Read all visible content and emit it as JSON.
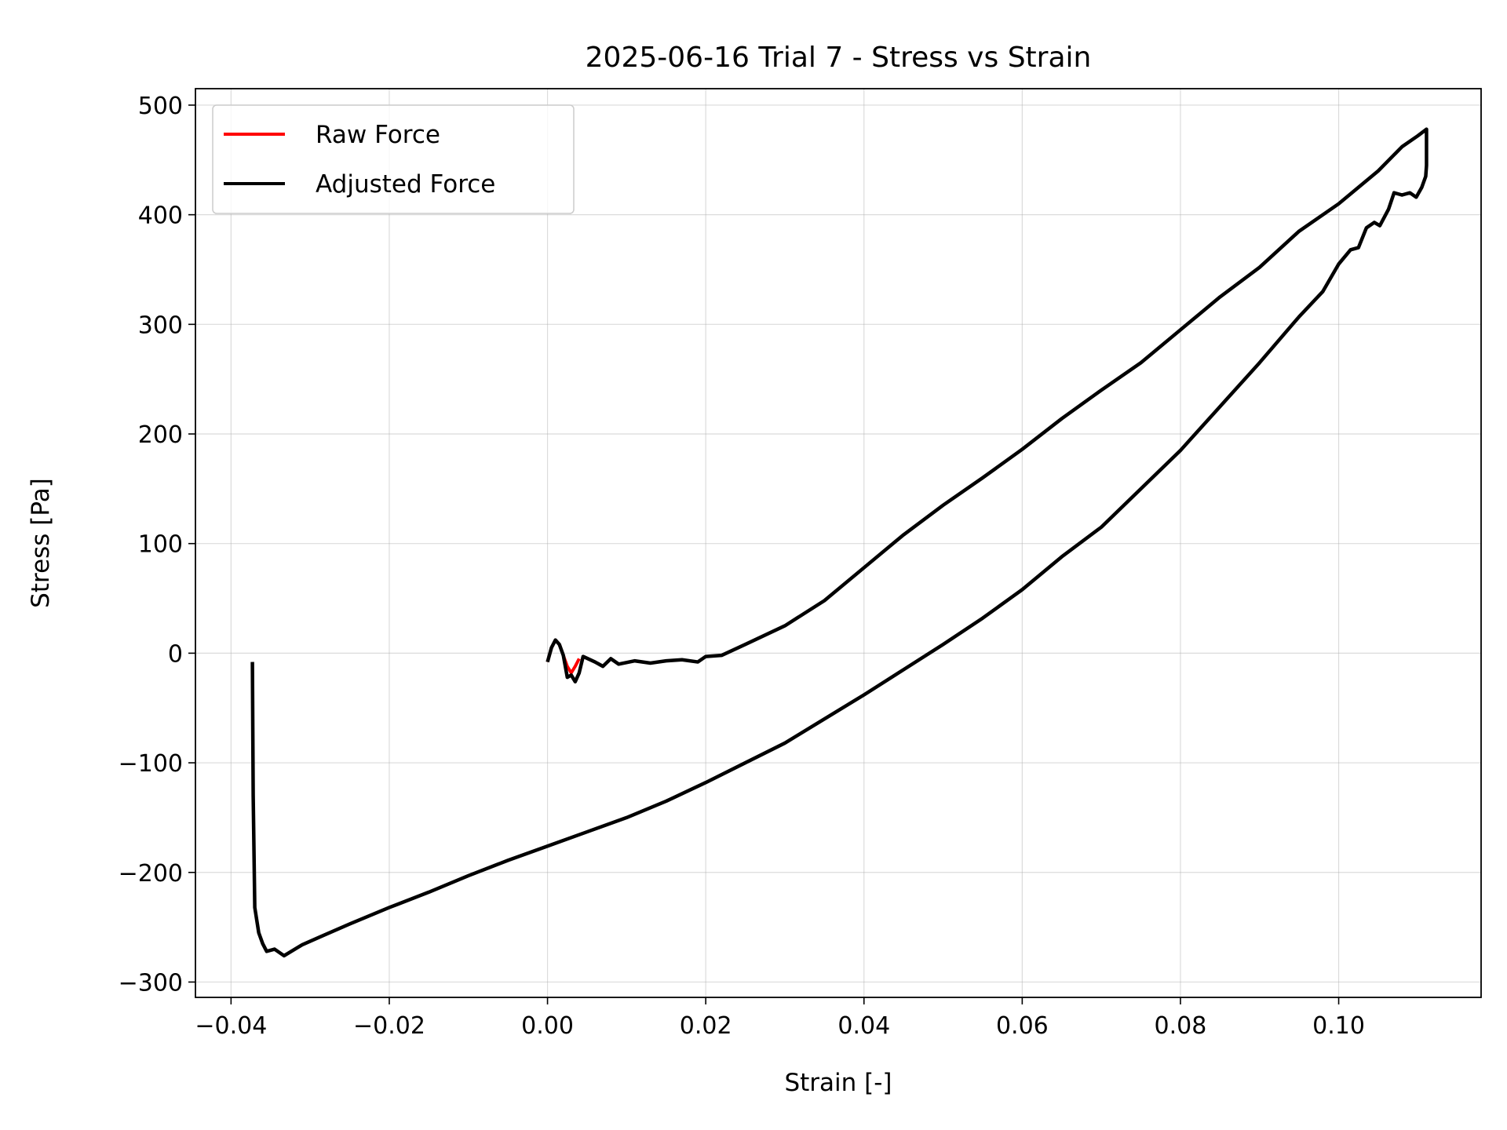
{
  "chart_data": {
    "type": "line",
    "title": "2025-06-16 Trial 7 - Stress vs Strain",
    "xlabel": "Strain [-]",
    "ylabel": "Stress [Pa]",
    "xlim": [
      -0.0445,
      0.118
    ],
    "ylim": [
      -314,
      515
    ],
    "xticks": [
      -0.04,
      -0.02,
      0.0,
      0.02,
      0.04,
      0.06,
      0.08,
      0.1
    ],
    "xtick_labels": [
      "−0.04",
      "−0.02",
      "0.00",
      "0.02",
      "0.04",
      "0.06",
      "0.08",
      "0.10"
    ],
    "yticks": [
      -300,
      -200,
      -100,
      0,
      100,
      200,
      300,
      400,
      500
    ],
    "ytick_labels": [
      "−300",
      "−200",
      "−100",
      "0",
      "100",
      "200",
      "300",
      "400",
      "500"
    ],
    "grid": true,
    "legend_position": "top-left",
    "series": [
      {
        "name": "Raw Force",
        "color": "#ff0000",
        "points": [
          [
            0.0,
            -8
          ],
          [
            0.0005,
            5
          ],
          [
            0.001,
            12
          ],
          [
            0.0015,
            8
          ],
          [
            0.002,
            -2
          ],
          [
            0.0025,
            -12
          ],
          [
            0.003,
            -18
          ],
          [
            0.0035,
            -12
          ],
          [
            0.004,
            -5
          ]
        ]
      },
      {
        "name": "Adjusted Force",
        "color": "#000000",
        "points": [
          [
            0.0,
            -8
          ],
          [
            0.0005,
            5
          ],
          [
            0.001,
            12
          ],
          [
            0.0015,
            8
          ],
          [
            0.002,
            -2
          ],
          [
            0.0025,
            -22
          ],
          [
            0.003,
            -20
          ],
          [
            0.0035,
            -26
          ],
          [
            0.004,
            -18
          ],
          [
            0.0045,
            -3
          ],
          [
            0.006,
            -8
          ],
          [
            0.007,
            -12
          ],
          [
            0.008,
            -5
          ],
          [
            0.009,
            -10
          ],
          [
            0.011,
            -7
          ],
          [
            0.013,
            -9
          ],
          [
            0.015,
            -7
          ],
          [
            0.017,
            -6
          ],
          [
            0.019,
            -8
          ],
          [
            0.02,
            -3
          ],
          [
            0.022,
            -2
          ],
          [
            0.025,
            8
          ],
          [
            0.03,
            25
          ],
          [
            0.035,
            48
          ],
          [
            0.04,
            78
          ],
          [
            0.045,
            108
          ],
          [
            0.05,
            135
          ],
          [
            0.055,
            160
          ],
          [
            0.06,
            186
          ],
          [
            0.065,
            214
          ],
          [
            0.07,
            240
          ],
          [
            0.075,
            265
          ],
          [
            0.08,
            295
          ],
          [
            0.085,
            325
          ],
          [
            0.09,
            352
          ],
          [
            0.095,
            385
          ],
          [
            0.1,
            410
          ],
          [
            0.105,
            440
          ],
          [
            0.108,
            462
          ],
          [
            0.11,
            472
          ],
          [
            0.1111,
            478
          ],
          [
            0.1111,
            445
          ],
          [
            0.111,
            435
          ],
          [
            0.1105,
            425
          ],
          [
            0.1098,
            416
          ],
          [
            0.109,
            420
          ],
          [
            0.108,
            418
          ],
          [
            0.107,
            420
          ],
          [
            0.1063,
            405
          ],
          [
            0.1052,
            390
          ],
          [
            0.1045,
            393
          ],
          [
            0.1035,
            388
          ],
          [
            0.1025,
            370
          ],
          [
            0.1015,
            368
          ],
          [
            0.1,
            355
          ],
          [
            0.098,
            330
          ],
          [
            0.095,
            307
          ],
          [
            0.09,
            265
          ],
          [
            0.085,
            225
          ],
          [
            0.08,
            185
          ],
          [
            0.075,
            150
          ],
          [
            0.07,
            115
          ],
          [
            0.065,
            88
          ],
          [
            0.06,
            58
          ],
          [
            0.055,
            32
          ],
          [
            0.05,
            8
          ],
          [
            0.045,
            -15
          ],
          [
            0.04,
            -38
          ],
          [
            0.035,
            -60
          ],
          [
            0.03,
            -82
          ],
          [
            0.025,
            -100
          ],
          [
            0.02,
            -118
          ],
          [
            0.015,
            -135
          ],
          [
            0.01,
            -150
          ],
          [
            0.005,
            -163
          ],
          [
            0.0,
            -176
          ],
          [
            -0.005,
            -189
          ],
          [
            -0.01,
            -203
          ],
          [
            -0.015,
            -218
          ],
          [
            -0.02,
            -232
          ],
          [
            -0.025,
            -247
          ],
          [
            -0.0285,
            -258
          ],
          [
            -0.031,
            -266
          ],
          [
            -0.0333,
            -276
          ],
          [
            -0.0345,
            -270
          ],
          [
            -0.0355,
            -272
          ],
          [
            -0.036,
            -265
          ],
          [
            -0.0365,
            -255
          ],
          [
            -0.037,
            -232
          ],
          [
            -0.0372,
            -130
          ],
          [
            -0.0373,
            -8
          ]
        ]
      }
    ]
  }
}
